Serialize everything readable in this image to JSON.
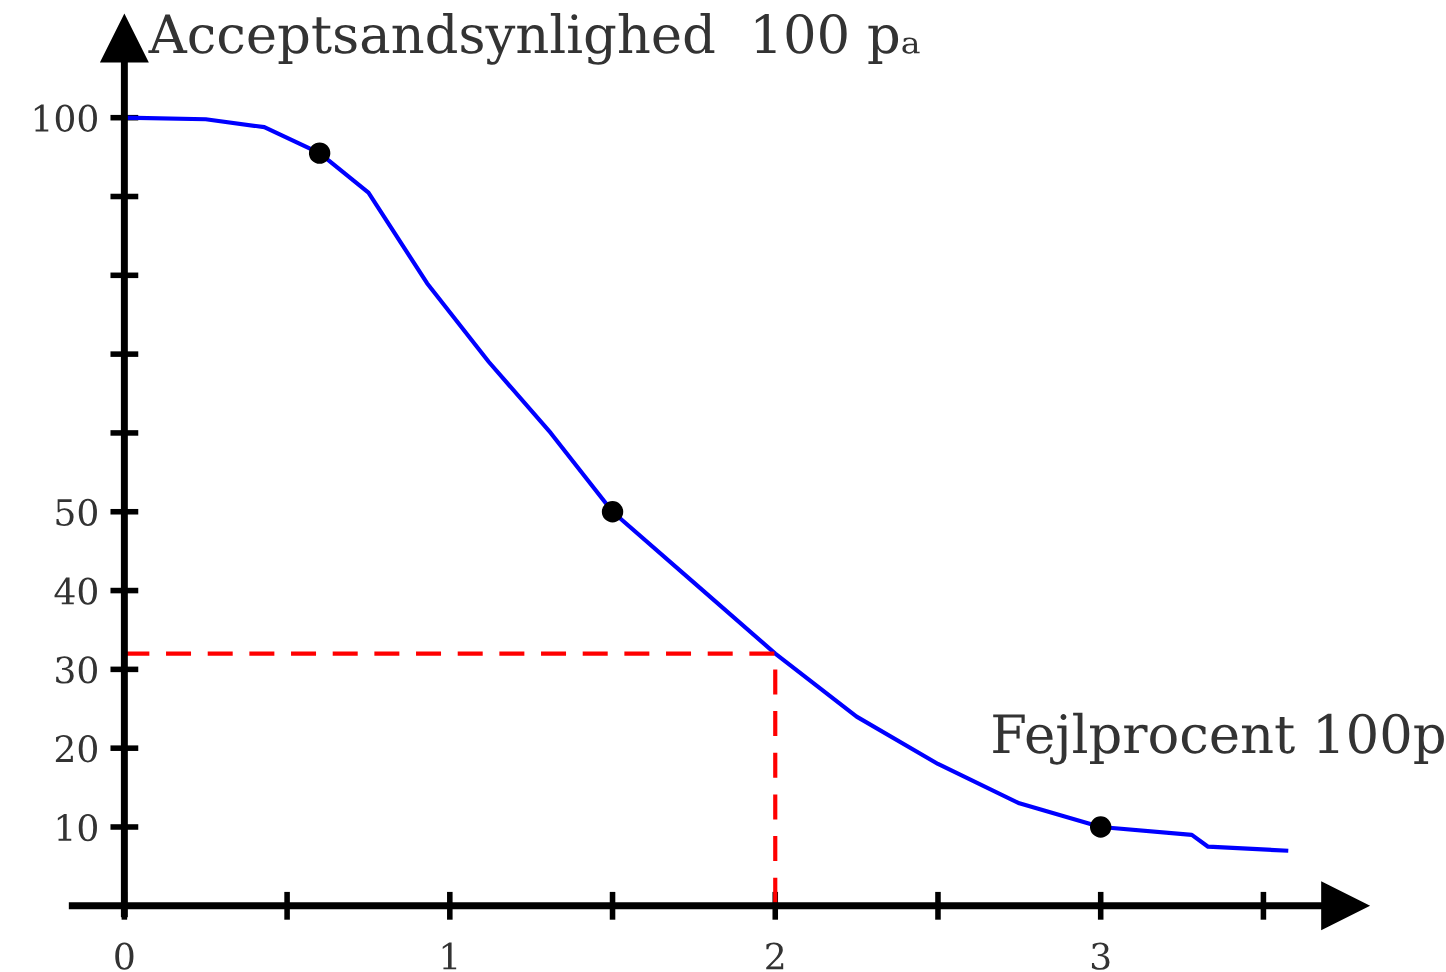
{
  "chart_data": {
    "type": "line",
    "ylabel": "Acceptsandsynlighed  100 pₐ",
    "xlabel": "Fejlprocent 100p",
    "xlim": [
      -0.16,
      3.75
    ],
    "ylim": [
      -1,
      110
    ],
    "xticks": [
      0,
      {
        "value": 0.5,
        "label": null
      },
      1,
      {
        "value": 1.5,
        "label": null
      },
      2,
      {
        "value": 2.5,
        "label": null
      },
      3,
      {
        "value": 3.5,
        "label": null
      }
    ],
    "yticks": [
      10,
      20,
      30,
      40,
      50,
      {
        "value": 60,
        "label": null
      },
      {
        "value": 70,
        "label": null
      },
      {
        "value": 80,
        "label": null
      },
      {
        "value": 90,
        "label": null
      },
      100
    ],
    "grid": false,
    "legend": false,
    "series": [
      {
        "color": "#0000ff",
        "line_style": "solid",
        "marker": "none",
        "x": [
          0,
          0.25,
          0.43,
          0.6,
          0.75,
          0.93,
          1.12,
          1.31,
          1.5,
          1.75,
          2.0,
          2.25,
          2.5,
          2.75,
          3.0,
          3.28,
          3.33,
          3.57
        ],
        "values": [
          100,
          99.8,
          98.8,
          95.5,
          90.5,
          79,
          69,
          60,
          50,
          41,
          32,
          24,
          18,
          13,
          10,
          9,
          7.5,
          7
        ]
      },
      {
        "color": "#ff0000",
        "line_style": "dashed",
        "marker": "none",
        "x": [
          0,
          2,
          2
        ],
        "values": [
          32,
          32,
          0
        ]
      },
      {
        "type": "scatter",
        "color": "#000000",
        "marker": "circle",
        "x": [
          0.6,
          1.5,
          3
        ],
        "values": [
          95.5,
          50,
          10
        ]
      }
    ]
  }
}
